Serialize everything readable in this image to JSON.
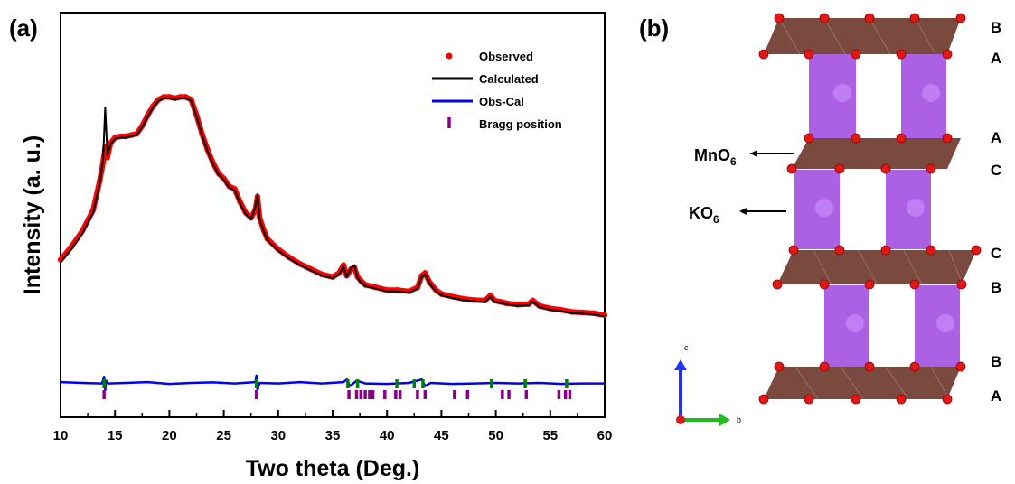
{
  "panel_a": {
    "label": "(a)",
    "chart_data": {
      "type": "line",
      "xlabel": "Two theta (Deg.)",
      "ylabel": "Intensity (a. u.)",
      "xlim": [
        10,
        60
      ],
      "xticks": [
        10,
        15,
        20,
        25,
        30,
        35,
        40,
        45,
        50,
        55,
        60
      ],
      "legend_position": "top-right",
      "series": [
        {
          "name": "Observed",
          "style": "points",
          "color": "#ff0000",
          "x": [
            10,
            11,
            12,
            13,
            13.6,
            13.9,
            14.1,
            14.3,
            14.6,
            15,
            15.5,
            16,
            16.5,
            17,
            17.5,
            18,
            18.5,
            19,
            19.5,
            20,
            20.5,
            21,
            21.5,
            22,
            22.5,
            23,
            23.5,
            24,
            24.5,
            25,
            25.5,
            26,
            26.5,
            27,
            27.5,
            27.9,
            28.1,
            28.3,
            28.7,
            29,
            30,
            31,
            32,
            33,
            34,
            35,
            35.6,
            36,
            36.3,
            36.7,
            37,
            37.3,
            37.6,
            38,
            39,
            40,
            41,
            42,
            42.8,
            43.2,
            43.5,
            43.9,
            44.5,
            45,
            46,
            47,
            48,
            49,
            49.5,
            49.9,
            50.5,
            51,
            52,
            53,
            53.4,
            54,
            55,
            56,
            57,
            58,
            59,
            60
          ],
          "y": [
            3.1,
            3.6,
            4.2,
            5.0,
            6.1,
            6.8,
            7.4,
            7.0,
            7.55,
            7.75,
            7.8,
            7.8,
            7.85,
            7.9,
            8.2,
            8.6,
            8.95,
            9.2,
            9.3,
            9.3,
            9.25,
            9.3,
            9.3,
            9.2,
            8.6,
            7.9,
            7.3,
            6.8,
            6.4,
            6.2,
            5.9,
            5.8,
            5.3,
            4.9,
            4.7,
            5.0,
            5.5,
            4.7,
            4.2,
            3.9,
            3.5,
            3.2,
            2.95,
            2.75,
            2.55,
            2.45,
            2.6,
            2.9,
            2.5,
            2.75,
            2.8,
            2.45,
            2.3,
            2.15,
            2.05,
            1.95,
            1.95,
            1.9,
            2.05,
            2.5,
            2.6,
            2.25,
            1.95,
            1.8,
            1.7,
            1.62,
            1.57,
            1.55,
            1.75,
            1.55,
            1.5,
            1.45,
            1.4,
            1.42,
            1.55,
            1.35,
            1.25,
            1.2,
            1.12,
            1.1,
            1.07,
            1.0
          ]
        },
        {
          "name": "Calculated",
          "style": "line",
          "color": "#000000",
          "x": [
            10,
            11,
            12,
            13,
            13.6,
            13.9,
            14.1,
            14.3,
            14.6,
            15,
            15.5,
            16,
            16.5,
            17,
            17.5,
            18,
            18.5,
            19,
            19.5,
            20,
            20.5,
            21,
            21.5,
            22,
            22.5,
            23,
            23.5,
            24,
            24.5,
            25,
            25.5,
            26,
            26.5,
            27,
            27.5,
            27.9,
            28.1,
            28.3,
            28.7,
            29,
            30,
            31,
            32,
            33,
            34,
            35,
            35.6,
            36,
            36.3,
            36.7,
            37,
            37.3,
            37.6,
            38,
            39,
            40,
            41,
            42,
            42.8,
            43.2,
            43.5,
            43.9,
            44.5,
            45,
            46,
            47,
            48,
            49,
            49.5,
            49.9,
            50.5,
            51,
            52,
            53,
            53.4,
            54,
            55,
            56,
            57,
            58,
            59,
            60
          ],
          "y": [
            3.0,
            3.5,
            4.1,
            4.9,
            6.0,
            6.9,
            8.9,
            7.1,
            7.5,
            7.7,
            7.75,
            7.75,
            7.8,
            7.85,
            8.15,
            8.55,
            8.9,
            9.15,
            9.25,
            9.25,
            9.2,
            9.25,
            9.25,
            9.15,
            8.55,
            7.85,
            7.25,
            6.75,
            6.35,
            6.15,
            5.85,
            5.75,
            5.25,
            4.85,
            4.65,
            5.1,
            5.6,
            4.65,
            4.15,
            3.85,
            3.45,
            3.15,
            2.9,
            2.7,
            2.5,
            2.4,
            2.55,
            2.85,
            2.45,
            2.8,
            2.9,
            2.4,
            2.25,
            2.1,
            2.0,
            1.9,
            1.9,
            1.85,
            2.0,
            2.45,
            2.55,
            2.2,
            1.9,
            1.75,
            1.65,
            1.57,
            1.52,
            1.5,
            1.7,
            1.5,
            1.45,
            1.4,
            1.35,
            1.37,
            1.5,
            1.3,
            1.2,
            1.15,
            1.07,
            1.05,
            1.02,
            0.95
          ]
        },
        {
          "name": "Obs-Cal",
          "style": "line",
          "color": "#0000ff",
          "x": [
            10,
            12,
            13.8,
            14.0,
            14.1,
            14.2,
            14.4,
            16,
            18,
            20,
            22,
            24,
            26,
            27.9,
            28.0,
            28.1,
            28.3,
            30,
            32,
            34,
            36,
            36.3,
            36.6,
            37.2,
            38,
            40,
            42,
            43.2,
            43.5,
            44,
            46,
            48,
            50,
            52,
            54,
            56,
            58,
            60
          ],
          "y": [
            -1.55,
            -1.58,
            -1.6,
            -1.35,
            -1.85,
            -1.5,
            -1.6,
            -1.58,
            -1.55,
            -1.62,
            -1.58,
            -1.56,
            -1.6,
            -1.55,
            -1.3,
            -1.85,
            -1.58,
            -1.6,
            -1.55,
            -1.6,
            -1.55,
            -1.45,
            -1.7,
            -1.5,
            -1.6,
            -1.62,
            -1.58,
            -1.45,
            -1.7,
            -1.58,
            -1.62,
            -1.6,
            -1.58,
            -1.6,
            -1.58,
            -1.62,
            -1.6,
            -1.6
          ]
        },
        {
          "name": "Bragg position",
          "style": "ticks",
          "color": "#8b008b",
          "x": [
            14.0,
            28.0,
            36.5,
            37.2,
            37.6,
            38.0,
            38.4,
            38.7,
            39.8,
            40.8,
            41.2,
            42.8,
            43.5,
            46.2,
            47.4,
            50.6,
            51.2,
            52.8,
            55.8,
            56.4,
            56.8
          ]
        },
        {
          "name": "",
          "style": "ticks",
          "color": "#008000",
          "x": [
            14.0,
            28.0,
            36.4,
            37.3,
            40.9,
            42.5,
            43.3,
            49.6,
            52.7,
            56.5
          ]
        }
      ]
    }
  },
  "panel_b": {
    "label": "(b)",
    "stacking_labels": [
      "B",
      "A",
      "A",
      "C",
      "C",
      "B",
      "B",
      "A"
    ],
    "annotations": {
      "mno6": {
        "base": "MnO",
        "sub": "6"
      },
      "ko6": {
        "base": "KO",
        "sub": "6"
      }
    },
    "axes_labels": {
      "c": "c",
      "b": "b"
    },
    "colors": {
      "octahedra_mn": "#7a4a3e",
      "prism_k": "#a34fe0",
      "oxygen": "#e01818",
      "c_axis": "#2233ff",
      "b_axis": "#22bb22"
    }
  }
}
